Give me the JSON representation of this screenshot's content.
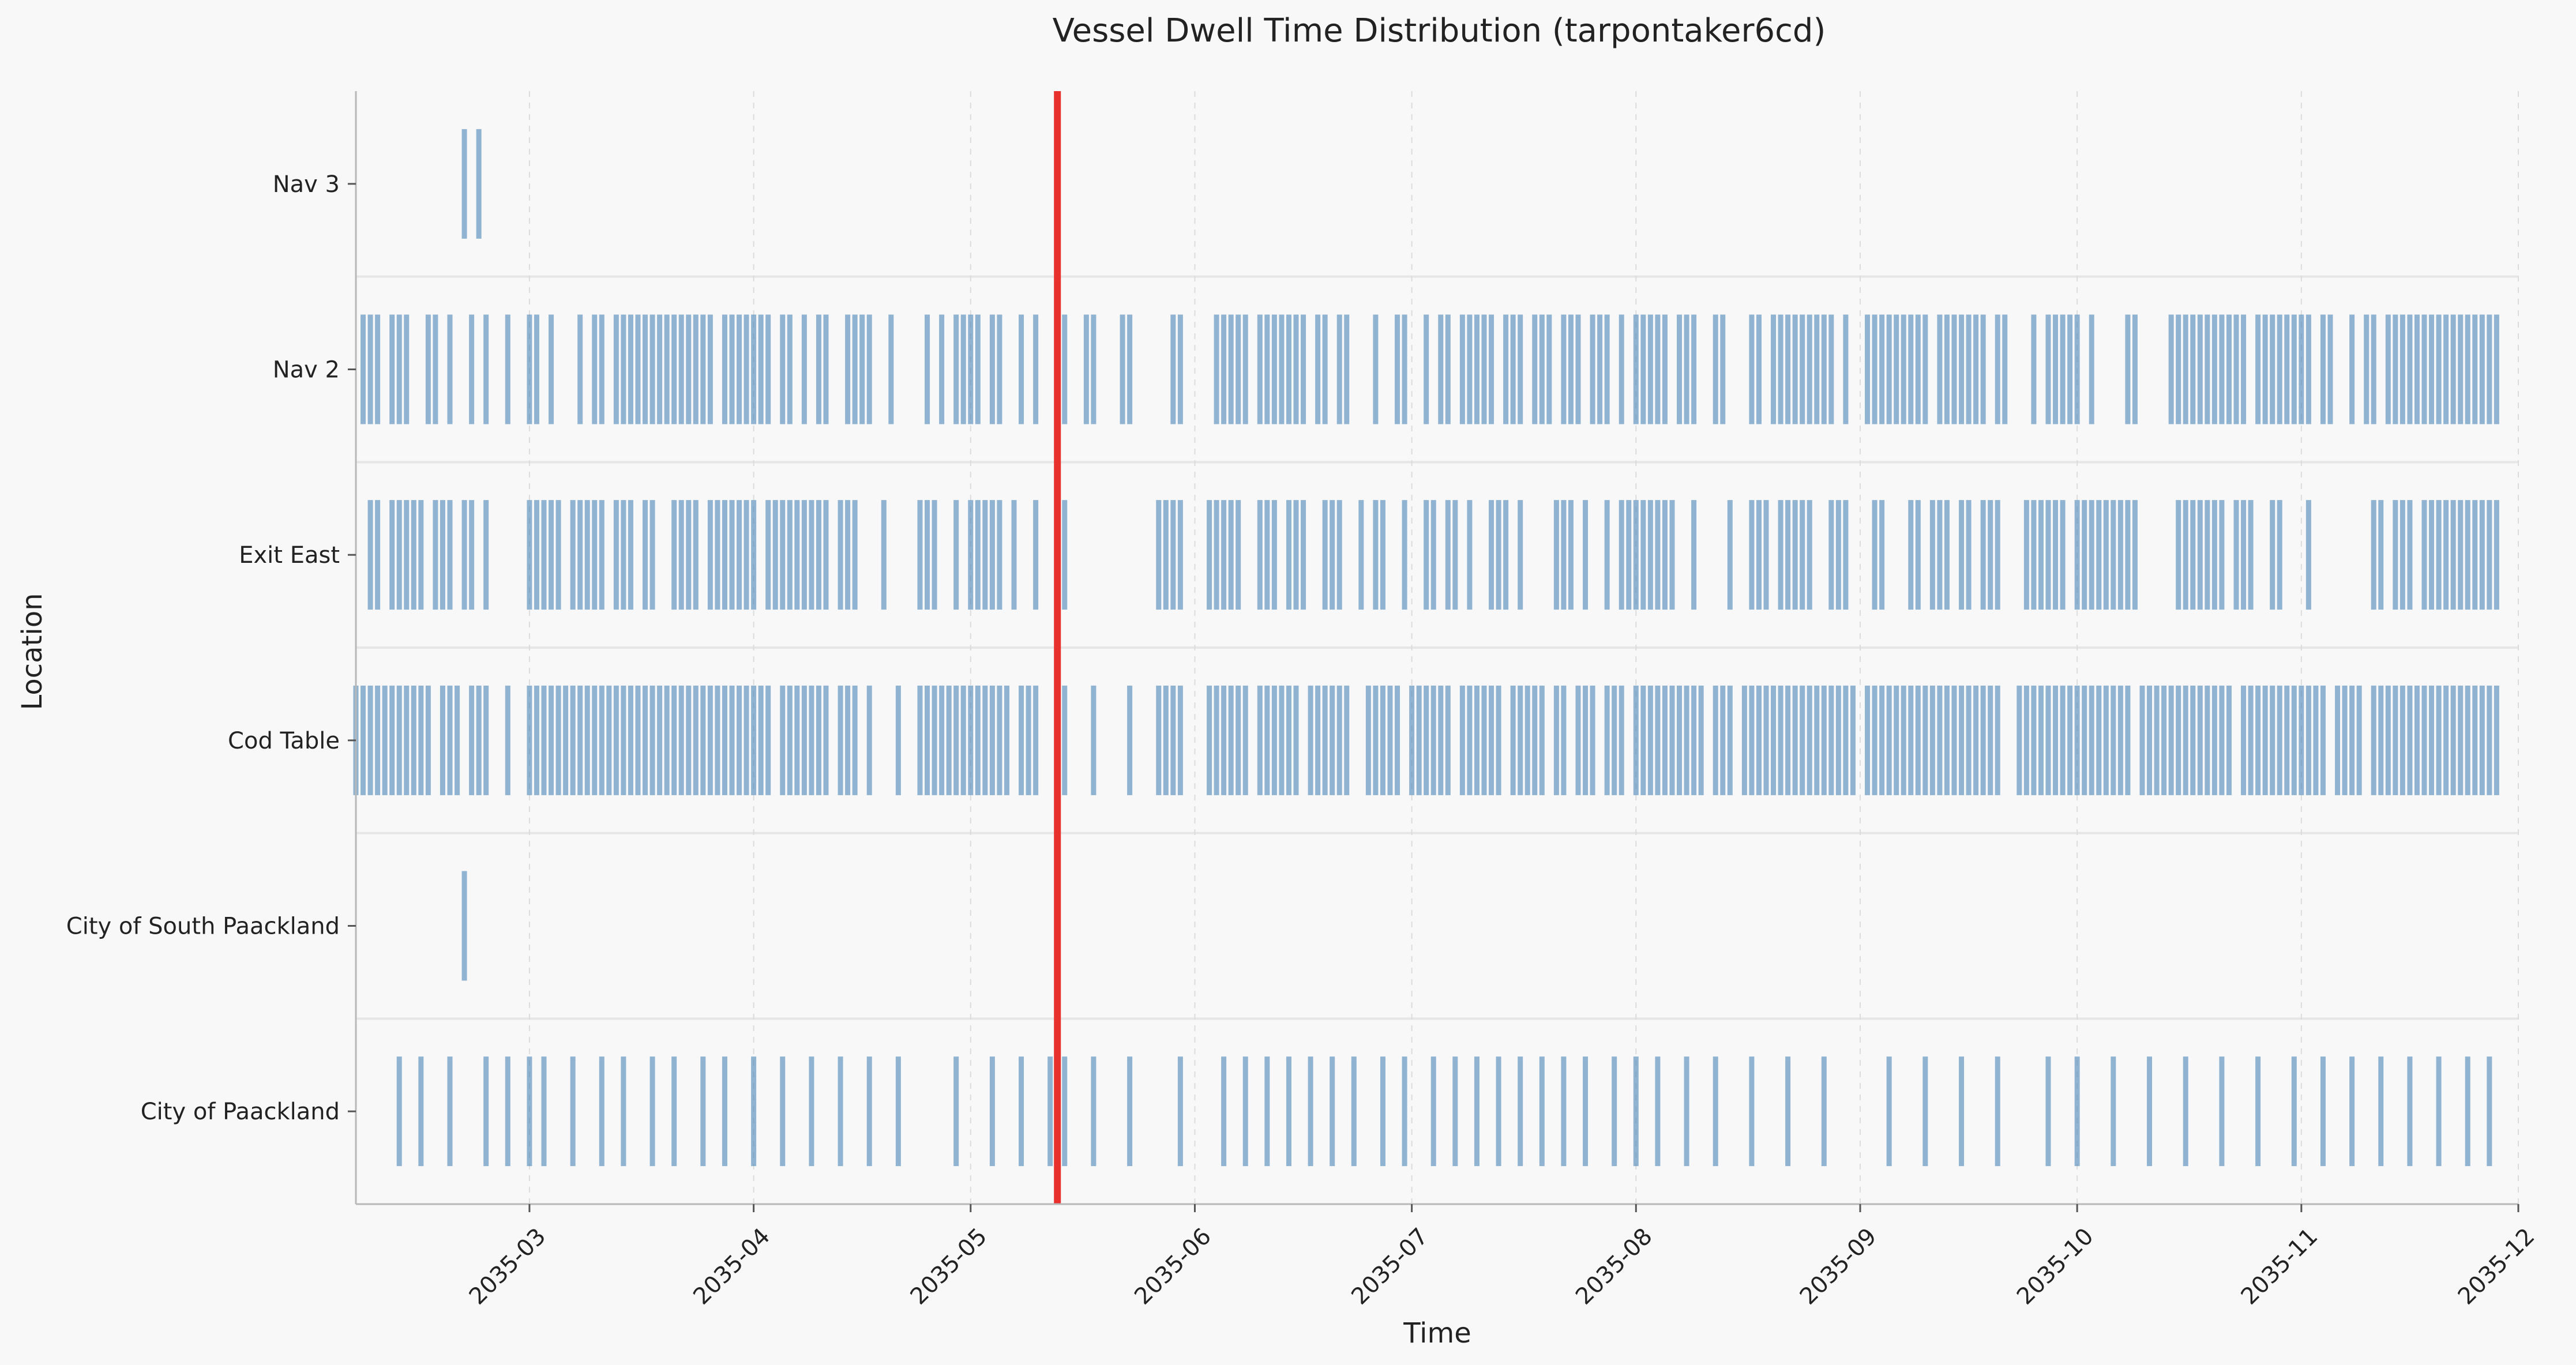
{
  "chart_data": {
    "type": "event-strip",
    "title": "Vessel Dwell Time Distribution (tarpontaker6cd)",
    "xlabel": "Time",
    "ylabel": "Location",
    "x_axis": {
      "scale": "date",
      "range": [
        "2035-02-05",
        "2035-12-01"
      ],
      "ticks": [
        "2035-03",
        "2035-04",
        "2035-05",
        "2035-06",
        "2035-07",
        "2035-08",
        "2035-09",
        "2035-10",
        "2035-11",
        "2035-12"
      ],
      "grid": "dashed vertical at ticks"
    },
    "categories": [
      "City of Paackland",
      "City of South Paackland",
      "Cod Table",
      "Exit East",
      "Nav 2",
      "Nav 3"
    ],
    "marker": {
      "date": "2035-05-13",
      "color": "#e8302c"
    },
    "event_color": "#4a86b8",
    "series": [
      {
        "category": "City of Paackland",
        "events": [
          "2035-02-11",
          "2035-02-14",
          "2035-02-18",
          "2035-02-23",
          "2035-02-26",
          "2035-03-01",
          "2035-03-03",
          "2035-03-07",
          "2035-03-11",
          "2035-03-14",
          "2035-03-18",
          "2035-03-21",
          "2035-03-25",
          "2035-03-28",
          "2035-04-01",
          "2035-04-05",
          "2035-04-09",
          "2035-04-13",
          "2035-04-17",
          "2035-04-21",
          "2035-04-29",
          "2035-05-04",
          "2035-05-08",
          "2035-05-12",
          "2035-05-14",
          "2035-05-18",
          "2035-05-23",
          "2035-05-30",
          "2035-06-05",
          "2035-06-08",
          "2035-06-11",
          "2035-06-14",
          "2035-06-17",
          "2035-06-20",
          "2035-06-23",
          "2035-06-27",
          "2035-06-30",
          "2035-07-04",
          "2035-07-07",
          "2035-07-10",
          "2035-07-13",
          "2035-07-16",
          "2035-07-19",
          "2035-07-22",
          "2035-07-25",
          "2035-07-29",
          "2035-08-01",
          "2035-08-04",
          "2035-08-08",
          "2035-08-12",
          "2035-08-17",
          "2035-08-22",
          "2035-08-27",
          "2035-09-05",
          "2035-09-10",
          "2035-09-15",
          "2035-09-20",
          "2035-09-27",
          "2035-10-01",
          "2035-10-06",
          "2035-10-11",
          "2035-10-16",
          "2035-10-21",
          "2035-10-26",
          "2035-10-31",
          "2035-11-04",
          "2035-11-08",
          "2035-11-12",
          "2035-11-16",
          "2035-11-20",
          "2035-11-24",
          "2035-11-27"
        ]
      },
      {
        "category": "City of South Paackland",
        "events": [
          "2035-02-20"
        ]
      },
      {
        "category": "Cod Table",
        "events": [
          "2035-02-05",
          "2035-02-06",
          "2035-02-07",
          "2035-02-08",
          "2035-02-09",
          "2035-02-10",
          "2035-02-11",
          "2035-02-12",
          "2035-02-13",
          "2035-02-14",
          "2035-02-15",
          "2035-02-17",
          "2035-02-18",
          "2035-02-19",
          "2035-02-21",
          "2035-02-22",
          "2035-02-23",
          "2035-02-26",
          "2035-03-01",
          "2035-03-02",
          "2035-03-03",
          "2035-03-04",
          "2035-03-05",
          "2035-03-06",
          "2035-03-07",
          "2035-03-08",
          "2035-03-09",
          "2035-03-10",
          "2035-03-11",
          "2035-03-12",
          "2035-03-13",
          "2035-03-14",
          "2035-03-15",
          "2035-03-16",
          "2035-03-17",
          "2035-03-18",
          "2035-03-19",
          "2035-03-20",
          "2035-03-21",
          "2035-03-22",
          "2035-03-23",
          "2035-03-24",
          "2035-03-25",
          "2035-03-26",
          "2035-03-27",
          "2035-03-28",
          "2035-03-29",
          "2035-03-30",
          "2035-03-31",
          "2035-04-01",
          "2035-04-02",
          "2035-04-03",
          "2035-04-05",
          "2035-04-06",
          "2035-04-07",
          "2035-04-08",
          "2035-04-09",
          "2035-04-10",
          "2035-04-11",
          "2035-04-13",
          "2035-04-14",
          "2035-04-15",
          "2035-04-17",
          "2035-04-21",
          "2035-04-24",
          "2035-04-25",
          "2035-04-26",
          "2035-04-27",
          "2035-04-28",
          "2035-04-29",
          "2035-04-30",
          "2035-05-01",
          "2035-05-02",
          "2035-05-03",
          "2035-05-04",
          "2035-05-05",
          "2035-05-06",
          "2035-05-08",
          "2035-05-09",
          "2035-05-10",
          "2035-05-13",
          "2035-05-14",
          "2035-05-18",
          "2035-05-23",
          "2035-05-27",
          "2035-05-28",
          "2035-05-29",
          "2035-05-30",
          "2035-06-03",
          "2035-06-04",
          "2035-06-05",
          "2035-06-06",
          "2035-06-07",
          "2035-06-08",
          "2035-06-10",
          "2035-06-11",
          "2035-06-12",
          "2035-06-13",
          "2035-06-14",
          "2035-06-15",
          "2035-06-17",
          "2035-06-18",
          "2035-06-19",
          "2035-06-20",
          "2035-06-21",
          "2035-06-22",
          "2035-06-25",
          "2035-06-26",
          "2035-06-27",
          "2035-06-28",
          "2035-06-29",
          "2035-07-01",
          "2035-07-02",
          "2035-07-03",
          "2035-07-04",
          "2035-07-05",
          "2035-07-06",
          "2035-07-08",
          "2035-07-09",
          "2035-07-10",
          "2035-07-11",
          "2035-07-12",
          "2035-07-13",
          "2035-07-15",
          "2035-07-16",
          "2035-07-17",
          "2035-07-18",
          "2035-07-19",
          "2035-07-21",
          "2035-07-22",
          "2035-07-24",
          "2035-07-25",
          "2035-07-26",
          "2035-07-28",
          "2035-07-29",
          "2035-07-30",
          "2035-08-01",
          "2035-08-02",
          "2035-08-03",
          "2035-08-04",
          "2035-08-05",
          "2035-08-06",
          "2035-08-07",
          "2035-08-08",
          "2035-08-09",
          "2035-08-10",
          "2035-08-12",
          "2035-08-13",
          "2035-08-14",
          "2035-08-16",
          "2035-08-17",
          "2035-08-18",
          "2035-08-19",
          "2035-08-20",
          "2035-08-21",
          "2035-08-22",
          "2035-08-23",
          "2035-08-24",
          "2035-08-25",
          "2035-08-26",
          "2035-08-27",
          "2035-08-28",
          "2035-08-29",
          "2035-08-30",
          "2035-08-31",
          "2035-09-02",
          "2035-09-03",
          "2035-09-04",
          "2035-09-05",
          "2035-09-06",
          "2035-09-07",
          "2035-09-08",
          "2035-09-09",
          "2035-09-10",
          "2035-09-11",
          "2035-09-12",
          "2035-09-13",
          "2035-09-14",
          "2035-09-15",
          "2035-09-16",
          "2035-09-17",
          "2035-09-18",
          "2035-09-19",
          "2035-09-20",
          "2035-09-23",
          "2035-09-24",
          "2035-09-25",
          "2035-09-26",
          "2035-09-27",
          "2035-09-28",
          "2035-09-29",
          "2035-09-30",
          "2035-10-01",
          "2035-10-02",
          "2035-10-03",
          "2035-10-04",
          "2035-10-05",
          "2035-10-06",
          "2035-10-07",
          "2035-10-08",
          "2035-10-10",
          "2035-10-11",
          "2035-10-12",
          "2035-10-13",
          "2035-10-14",
          "2035-10-15",
          "2035-10-16",
          "2035-10-17",
          "2035-10-18",
          "2035-10-19",
          "2035-10-20",
          "2035-10-21",
          "2035-10-22",
          "2035-10-24",
          "2035-10-25",
          "2035-10-26",
          "2035-10-27",
          "2035-10-28",
          "2035-10-29",
          "2035-10-30",
          "2035-10-31",
          "2035-11-01",
          "2035-11-02",
          "2035-11-03",
          "2035-11-04",
          "2035-11-06",
          "2035-11-07",
          "2035-11-08",
          "2035-11-09",
          "2035-11-11",
          "2035-11-12",
          "2035-11-13",
          "2035-11-14",
          "2035-11-15",
          "2035-11-16",
          "2035-11-17",
          "2035-11-18",
          "2035-11-19",
          "2035-11-20",
          "2035-11-21",
          "2035-11-22",
          "2035-11-23",
          "2035-11-24",
          "2035-11-25",
          "2035-11-26",
          "2035-11-27",
          "2035-11-28"
        ]
      },
      {
        "category": "Exit East",
        "events": [
          "2035-02-07",
          "2035-02-08",
          "2035-02-10",
          "2035-02-11",
          "2035-02-12",
          "2035-02-13",
          "2035-02-14",
          "2035-02-16",
          "2035-02-17",
          "2035-02-18",
          "2035-02-20",
          "2035-02-21",
          "2035-02-23",
          "2035-03-01",
          "2035-03-02",
          "2035-03-03",
          "2035-03-04",
          "2035-03-05",
          "2035-03-07",
          "2035-03-08",
          "2035-03-09",
          "2035-03-10",
          "2035-03-11",
          "2035-03-13",
          "2035-03-14",
          "2035-03-15",
          "2035-03-17",
          "2035-03-18",
          "2035-03-21",
          "2035-03-22",
          "2035-03-23",
          "2035-03-24",
          "2035-03-26",
          "2035-03-27",
          "2035-03-28",
          "2035-03-29",
          "2035-03-30",
          "2035-03-31",
          "2035-04-01",
          "2035-04-03",
          "2035-04-04",
          "2035-04-05",
          "2035-04-06",
          "2035-04-07",
          "2035-04-08",
          "2035-04-09",
          "2035-04-10",
          "2035-04-11",
          "2035-04-13",
          "2035-04-14",
          "2035-04-15",
          "2035-04-19",
          "2035-04-24",
          "2035-04-25",
          "2035-04-26",
          "2035-04-29",
          "2035-05-01",
          "2035-05-02",
          "2035-05-03",
          "2035-05-04",
          "2035-05-05",
          "2035-05-07",
          "2035-05-10",
          "2035-05-13",
          "2035-05-14",
          "2035-05-27",
          "2035-05-28",
          "2035-05-29",
          "2035-05-30",
          "2035-06-03",
          "2035-06-04",
          "2035-06-05",
          "2035-06-06",
          "2035-06-07",
          "2035-06-10",
          "2035-06-11",
          "2035-06-12",
          "2035-06-14",
          "2035-06-15",
          "2035-06-16",
          "2035-06-19",
          "2035-06-20",
          "2035-06-21",
          "2035-06-24",
          "2035-06-26",
          "2035-06-27",
          "2035-06-30",
          "2035-07-03",
          "2035-07-04",
          "2035-07-06",
          "2035-07-07",
          "2035-07-09",
          "2035-07-12",
          "2035-07-13",
          "2035-07-14",
          "2035-07-16",
          "2035-07-21",
          "2035-07-22",
          "2035-07-23",
          "2035-07-25",
          "2035-07-28",
          "2035-07-30",
          "2035-07-31",
          "2035-08-01",
          "2035-08-02",
          "2035-08-03",
          "2035-08-04",
          "2035-08-05",
          "2035-08-06",
          "2035-08-09",
          "2035-08-14",
          "2035-08-17",
          "2035-08-18",
          "2035-08-19",
          "2035-08-21",
          "2035-08-22",
          "2035-08-23",
          "2035-08-24",
          "2035-08-25",
          "2035-08-28",
          "2035-08-29",
          "2035-08-30",
          "2035-09-03",
          "2035-09-04",
          "2035-09-08",
          "2035-09-09",
          "2035-09-11",
          "2035-09-12",
          "2035-09-13",
          "2035-09-15",
          "2035-09-16",
          "2035-09-18",
          "2035-09-19",
          "2035-09-20",
          "2035-09-24",
          "2035-09-25",
          "2035-09-26",
          "2035-09-27",
          "2035-09-28",
          "2035-09-29",
          "2035-10-01",
          "2035-10-02",
          "2035-10-03",
          "2035-10-04",
          "2035-10-05",
          "2035-10-06",
          "2035-10-07",
          "2035-10-08",
          "2035-10-09",
          "2035-10-15",
          "2035-10-16",
          "2035-10-17",
          "2035-10-18",
          "2035-10-19",
          "2035-10-20",
          "2035-10-21",
          "2035-10-23",
          "2035-10-24",
          "2035-10-25",
          "2035-10-28",
          "2035-10-29",
          "2035-11-02",
          "2035-11-11",
          "2035-11-12",
          "2035-11-14",
          "2035-11-15",
          "2035-11-16",
          "2035-11-18",
          "2035-11-19",
          "2035-11-20",
          "2035-11-21",
          "2035-11-22",
          "2035-11-23",
          "2035-11-24",
          "2035-11-25",
          "2035-11-26",
          "2035-11-27",
          "2035-11-28"
        ]
      },
      {
        "category": "Nav 2",
        "events": [
          "2035-02-06",
          "2035-02-07",
          "2035-02-08",
          "2035-02-10",
          "2035-02-11",
          "2035-02-12",
          "2035-02-15",
          "2035-02-16",
          "2035-02-18",
          "2035-02-21",
          "2035-02-23",
          "2035-02-26",
          "2035-03-01",
          "2035-03-02",
          "2035-03-04",
          "2035-03-08",
          "2035-03-10",
          "2035-03-11",
          "2035-03-13",
          "2035-03-14",
          "2035-03-15",
          "2035-03-16",
          "2035-03-17",
          "2035-03-18",
          "2035-03-19",
          "2035-03-20",
          "2035-03-21",
          "2035-03-22",
          "2035-03-23",
          "2035-03-24",
          "2035-03-25",
          "2035-03-26",
          "2035-03-28",
          "2035-03-29",
          "2035-03-30",
          "2035-03-31",
          "2035-04-01",
          "2035-04-02",
          "2035-04-03",
          "2035-04-05",
          "2035-04-06",
          "2035-04-08",
          "2035-04-10",
          "2035-04-11",
          "2035-04-14",
          "2035-04-15",
          "2035-04-16",
          "2035-04-17",
          "2035-04-20",
          "2035-04-25",
          "2035-04-27",
          "2035-04-29",
          "2035-04-30",
          "2035-05-01",
          "2035-05-02",
          "2035-05-04",
          "2035-05-05",
          "2035-05-08",
          "2035-05-10",
          "2035-05-14",
          "2035-05-17",
          "2035-05-18",
          "2035-05-22",
          "2035-05-23",
          "2035-05-29",
          "2035-05-30",
          "2035-06-04",
          "2035-06-05",
          "2035-06-06",
          "2035-06-07",
          "2035-06-08",
          "2035-06-10",
          "2035-06-11",
          "2035-06-12",
          "2035-06-13",
          "2035-06-14",
          "2035-06-15",
          "2035-06-16",
          "2035-06-18",
          "2035-06-19",
          "2035-06-21",
          "2035-06-22",
          "2035-06-26",
          "2035-06-29",
          "2035-06-30",
          "2035-07-03",
          "2035-07-05",
          "2035-07-06",
          "2035-07-08",
          "2035-07-09",
          "2035-07-10",
          "2035-07-11",
          "2035-07-12",
          "2035-07-14",
          "2035-07-15",
          "2035-07-16",
          "2035-07-18",
          "2035-07-19",
          "2035-07-20",
          "2035-07-22",
          "2035-07-23",
          "2035-07-24",
          "2035-07-26",
          "2035-07-27",
          "2035-07-28",
          "2035-07-30",
          "2035-08-01",
          "2035-08-02",
          "2035-08-03",
          "2035-08-04",
          "2035-08-05",
          "2035-08-07",
          "2035-08-08",
          "2035-08-09",
          "2035-08-12",
          "2035-08-13",
          "2035-08-17",
          "2035-08-18",
          "2035-08-20",
          "2035-08-21",
          "2035-08-22",
          "2035-08-23",
          "2035-08-24",
          "2035-08-25",
          "2035-08-26",
          "2035-08-27",
          "2035-08-28",
          "2035-08-30",
          "2035-09-02",
          "2035-09-03",
          "2035-09-04",
          "2035-09-05",
          "2035-09-06",
          "2035-09-07",
          "2035-09-08",
          "2035-09-09",
          "2035-09-10",
          "2035-09-12",
          "2035-09-13",
          "2035-09-14",
          "2035-09-15",
          "2035-09-16",
          "2035-09-17",
          "2035-09-18",
          "2035-09-20",
          "2035-09-21",
          "2035-09-25",
          "2035-09-27",
          "2035-09-28",
          "2035-09-29",
          "2035-09-30",
          "2035-10-01",
          "2035-10-03",
          "2035-10-08",
          "2035-10-09",
          "2035-10-14",
          "2035-10-15",
          "2035-10-16",
          "2035-10-17",
          "2035-10-18",
          "2035-10-19",
          "2035-10-20",
          "2035-10-21",
          "2035-10-22",
          "2035-10-23",
          "2035-10-24",
          "2035-10-26",
          "2035-10-27",
          "2035-10-28",
          "2035-10-29",
          "2035-10-30",
          "2035-10-31",
          "2035-11-01",
          "2035-11-02",
          "2035-11-04",
          "2035-11-05",
          "2035-11-08",
          "2035-11-10",
          "2035-11-11",
          "2035-11-13",
          "2035-11-14",
          "2035-11-15",
          "2035-11-16",
          "2035-11-17",
          "2035-11-18",
          "2035-11-19",
          "2035-11-20",
          "2035-11-21",
          "2035-11-22",
          "2035-11-23",
          "2035-11-24",
          "2035-11-25",
          "2035-11-26",
          "2035-11-27",
          "2035-11-28"
        ]
      },
      {
        "category": "Nav 3",
        "events": [
          "2035-02-20",
          "2035-02-22"
        ]
      }
    ]
  }
}
